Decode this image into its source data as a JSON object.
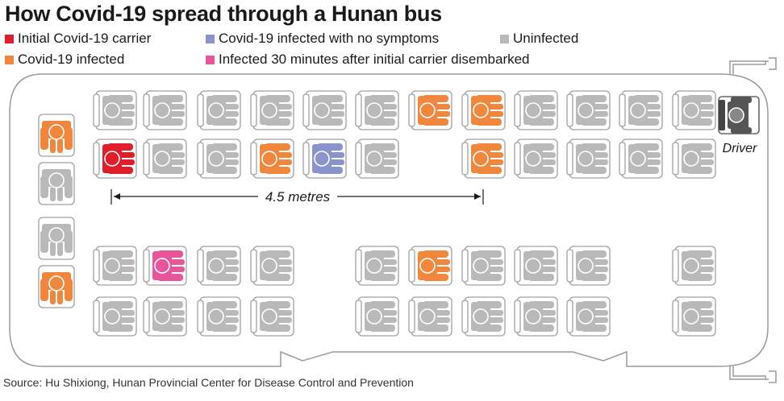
{
  "title": "How Covid-19 spread through a Hunan bus",
  "legend": [
    {
      "label": "Initial Covid-19 carrier",
      "color": "#e21c2a"
    },
    {
      "label": "Covid-19 infected with no symptoms",
      "color": "#8a94cc"
    },
    {
      "label": "Uninfected",
      "color": "#b9b9b9"
    },
    {
      "label": "Covid-19 infected",
      "color": "#f0873c"
    },
    {
      "label": "Infected 30 minutes after initial carrier disembarked",
      "color": "#e8559a"
    }
  ],
  "distance_label": "4.5 metres",
  "driver_label": "Driver",
  "source": "Source: Hu Shixiong, Hunan Provincial Center for Disease Control and Prevention",
  "status_colors": {
    "carrier": "#e21c2a",
    "asymptomatic": "#8a94cc",
    "uninfected": "#b9b9b9",
    "infected": "#f0873c",
    "late": "#e8559a",
    "driver": "#555555"
  },
  "seat_rows": [
    {
      "row": "upper-window",
      "seats": [
        "uninfected",
        "uninfected",
        "uninfected",
        "uninfected",
        "uninfected",
        "uninfected",
        "infected",
        "infected",
        "uninfected",
        "uninfected",
        "uninfected",
        "uninfected"
      ]
    },
    {
      "row": "upper-aisle",
      "seats": [
        "carrier",
        "uninfected",
        "uninfected",
        "infected",
        "asymptomatic",
        "uninfected",
        "infected",
        "uninfected",
        "uninfected",
        "uninfected",
        "uninfected"
      ]
    },
    {
      "row": "lower-aisle",
      "seats": [
        "uninfected",
        "late",
        "uninfected",
        "uninfected",
        "uninfected",
        "infected",
        "uninfected",
        "uninfected",
        "uninfected",
        "uninfected"
      ]
    },
    {
      "row": "lower-window",
      "seats": [
        "uninfected",
        "uninfected",
        "uninfected",
        "uninfected",
        "uninfected",
        "uninfected",
        "uninfected",
        "uninfected",
        "uninfected",
        "uninfected"
      ]
    }
  ],
  "rear_seats": [
    "infected",
    "uninfected",
    "uninfected",
    "infected"
  ]
}
